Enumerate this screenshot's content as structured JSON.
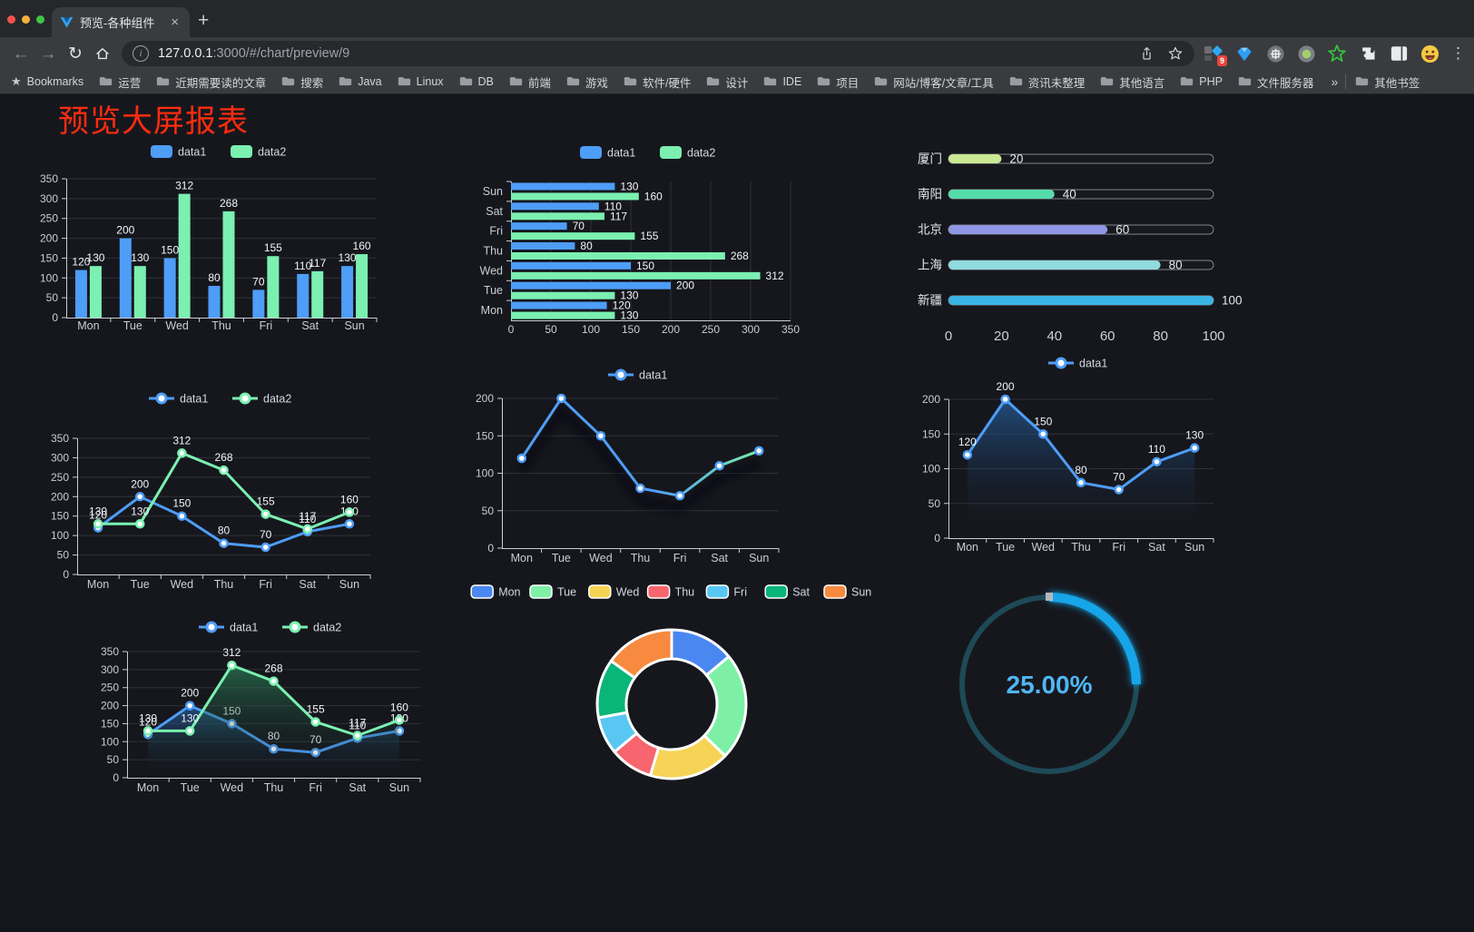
{
  "browser": {
    "tab_title": "预览-各种组件",
    "url_host": "127.0.0.1",
    "url_path": ":3000/#/chart/preview/9",
    "extension_badge": "9",
    "bookmarks_label": "Bookmarks",
    "bookmarks": [
      "运营",
      "近期需要读的文章",
      "搜索",
      "Java",
      "Linux",
      "DB",
      "前端",
      "游戏",
      "软件/硬件",
      "设计",
      "IDE",
      "项目",
      "网站/博客/文章/工具",
      "资讯未整理",
      "其他语言",
      "PHP",
      "文件服务器"
    ],
    "overflow_chevron": "»",
    "other_bookmarks": "其他书签",
    "icons": {
      "back": "←",
      "forward": "→",
      "reload": "↻",
      "close": "×",
      "new_tab": "+",
      "menu": "⋮",
      "bookmarks_star": "★",
      "info": "i"
    }
  },
  "page": {
    "title": "预览大屏报表",
    "title_color": "#fb2c10",
    "background": "#16171d"
  },
  "chart_data": [
    {
      "id": "bar-vertical",
      "type": "bar",
      "categories": [
        "Mon",
        "Tue",
        "Wed",
        "Thu",
        "Fri",
        "Sat",
        "Sun"
      ],
      "series": [
        {
          "name": "data1",
          "color": "#4e9df7",
          "values": [
            120,
            200,
            150,
            80,
            70,
            110,
            130
          ]
        },
        {
          "name": "data2",
          "color": "#7bf0b1",
          "values": [
            130,
            130,
            312,
            268,
            155,
            117,
            160
          ]
        }
      ],
      "ylim": [
        0,
        350
      ],
      "ytick_step": 50,
      "legend_position": "top",
      "grid": true
    },
    {
      "id": "bar-horizontal",
      "type": "bar-horizontal",
      "categories_top_to_bottom": [
        "Sun",
        "Sat",
        "Fri",
        "Thu",
        "Wed",
        "Tue",
        "Mon"
      ],
      "categories": [
        "Mon",
        "Tue",
        "Wed",
        "Thu",
        "Fri",
        "Sat",
        "Sun"
      ],
      "series": [
        {
          "name": "data1",
          "color": "#4e9df7",
          "values": [
            120,
            200,
            150,
            80,
            70,
            110,
            130
          ]
        },
        {
          "name": "data2",
          "color": "#7bf0b1",
          "values": [
            130,
            130,
            312,
            268,
            155,
            117,
            160
          ]
        }
      ],
      "xlim": [
        0,
        350
      ],
      "xtick_step": 50,
      "legend_position": "top"
    },
    {
      "id": "progress-bars",
      "type": "progress",
      "max": 100,
      "xticks": [
        0,
        20,
        40,
        60,
        80,
        100
      ],
      "items": [
        {
          "label": "厦门",
          "value": 20,
          "color": "#cbe892"
        },
        {
          "label": "南阳",
          "value": 40,
          "color": "#55dcab"
        },
        {
          "label": "北京",
          "value": 60,
          "color": "#8f96e3"
        },
        {
          "label": "上海",
          "value": 80,
          "color": "#8fdbdd"
        },
        {
          "label": "新疆",
          "value": 100,
          "color": "#38b3e3"
        }
      ]
    },
    {
      "id": "line-dual",
      "type": "line",
      "categories": [
        "Mon",
        "Tue",
        "Wed",
        "Thu",
        "Fri",
        "Sat",
        "Sun"
      ],
      "series": [
        {
          "name": "data1",
          "color": "#4e9df7",
          "area": false,
          "values": [
            120,
            200,
            150,
            80,
            70,
            110,
            130
          ]
        },
        {
          "name": "data2",
          "color": "#7bf0b1",
          "area": false,
          "values": [
            130,
            130,
            312,
            268,
            155,
            117,
            160
          ]
        }
      ],
      "ylim": [
        0,
        350
      ],
      "ytick_step": 50,
      "show_labels": true,
      "legend_position": "top"
    },
    {
      "id": "line-gradient",
      "type": "line",
      "categories": [
        "Mon",
        "Tue",
        "Wed",
        "Thu",
        "Fri",
        "Sat",
        "Sun"
      ],
      "series": [
        {
          "name": "data1",
          "color": "#4e9df7",
          "gradient_to": "#74eda6",
          "area": false,
          "values": [
            120,
            200,
            150,
            80,
            70,
            110,
            130
          ]
        }
      ],
      "ylim": [
        0,
        200
      ],
      "ytick_step": 50,
      "show_labels": false,
      "shadow": true,
      "legend_position": "top"
    },
    {
      "id": "area-single",
      "type": "area",
      "categories": [
        "Mon",
        "Tue",
        "Wed",
        "Thu",
        "Fri",
        "Sat",
        "Sun"
      ],
      "series": [
        {
          "name": "data1",
          "color": "#4e9df7",
          "area": true,
          "area_top": "#2a6db8",
          "values": [
            120,
            200,
            150,
            80,
            70,
            110,
            130
          ]
        }
      ],
      "ylim": [
        0,
        200
      ],
      "ytick_step": 50,
      "show_labels": true,
      "legend_position": "top"
    },
    {
      "id": "area-dual",
      "type": "area",
      "categories": [
        "Mon",
        "Tue",
        "Wed",
        "Thu",
        "Fri",
        "Sat",
        "Sun"
      ],
      "series": [
        {
          "name": "data1",
          "color": "#4e9df7",
          "area": true,
          "area_top": "#2a6db8",
          "values": [
            120,
            200,
            150,
            80,
            70,
            110,
            130
          ]
        },
        {
          "name": "data2",
          "color": "#7bf0b1",
          "area": true,
          "area_top": "#2e8f5f",
          "values": [
            130,
            130,
            312,
            268,
            155,
            117,
            160
          ]
        }
      ],
      "ylim": [
        0,
        350
      ],
      "ytick_step": 50,
      "show_labels": true,
      "legend_position": "top"
    },
    {
      "id": "donut",
      "type": "pie",
      "inner_radius_ratio": 0.6,
      "legend_position": "top",
      "items": [
        {
          "label": "Mon",
          "value": 120,
          "color": "#4a87f0"
        },
        {
          "label": "Tue",
          "value": 200,
          "color": "#7df0a6"
        },
        {
          "label": "Wed",
          "value": 150,
          "color": "#f6d355"
        },
        {
          "label": "Thu",
          "value": 80,
          "color": "#f7656e"
        },
        {
          "label": "Fri",
          "value": 70,
          "color": "#58c7f2"
        },
        {
          "label": "Sat",
          "value": 110,
          "color": "#09b578"
        },
        {
          "label": "Sun",
          "value": 130,
          "color": "#f78a3e"
        }
      ]
    },
    {
      "id": "gauge",
      "type": "gauge",
      "percent": 25,
      "value_text": "25.00%",
      "color": "#15a5e8",
      "track_color": "#1e4a57",
      "text_color": "#4fb6f4"
    }
  ]
}
